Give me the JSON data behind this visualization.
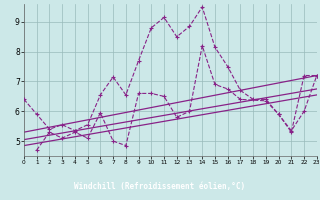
{
  "bg_color": "#cce8e8",
  "plot_bg": "#cce8e8",
  "line_color": "#882288",
  "grid_color": "#99bbbb",
  "xlabel": "Windchill (Refroidissement éolien,°C)",
  "xmin": 0,
  "xmax": 23,
  "ymin": 4.5,
  "ymax": 9.6,
  "yticks": [
    5,
    6,
    7,
    8,
    9
  ],
  "xticks": [
    0,
    1,
    2,
    3,
    4,
    5,
    6,
    7,
    8,
    9,
    10,
    11,
    12,
    13,
    14,
    15,
    16,
    17,
    18,
    19,
    20,
    21,
    22,
    23
  ],
  "series1_x": [
    0,
    1,
    2,
    3,
    4,
    5,
    6,
    7,
    8,
    9,
    10,
    11,
    12,
    13,
    14,
    15,
    16,
    17,
    18,
    19,
    20,
    21,
    22,
    23
  ],
  "series1_y": [
    6.4,
    5.9,
    5.4,
    5.55,
    5.35,
    5.55,
    6.55,
    7.15,
    6.55,
    7.7,
    8.8,
    9.15,
    8.5,
    8.85,
    9.5,
    8.15,
    7.5,
    6.7,
    6.4,
    6.4,
    5.9,
    5.3,
    7.2,
    7.2
  ],
  "series2_x": [
    1,
    2,
    3,
    4,
    5,
    6,
    7,
    8,
    9,
    10,
    11,
    12,
    13,
    14,
    15,
    16,
    17,
    19,
    20,
    21,
    22,
    23
  ],
  "series2_y": [
    4.7,
    5.3,
    5.1,
    5.3,
    5.1,
    5.95,
    5.0,
    4.85,
    6.6,
    6.6,
    6.5,
    5.8,
    6.0,
    8.2,
    6.9,
    6.75,
    6.4,
    6.35,
    5.9,
    5.35,
    6.0,
    7.2
  ],
  "trendline1_x": [
    0,
    23
  ],
  "trendline1_y": [
    4.85,
    6.55
  ],
  "trendline2_x": [
    0,
    23
  ],
  "trendline2_y": [
    5.05,
    6.75
  ],
  "trendline3_x": [
    0,
    23
  ],
  "trendline3_y": [
    5.3,
    7.2
  ],
  "xlabel_bg": "#550055",
  "xlabel_fg": "#ffffff"
}
